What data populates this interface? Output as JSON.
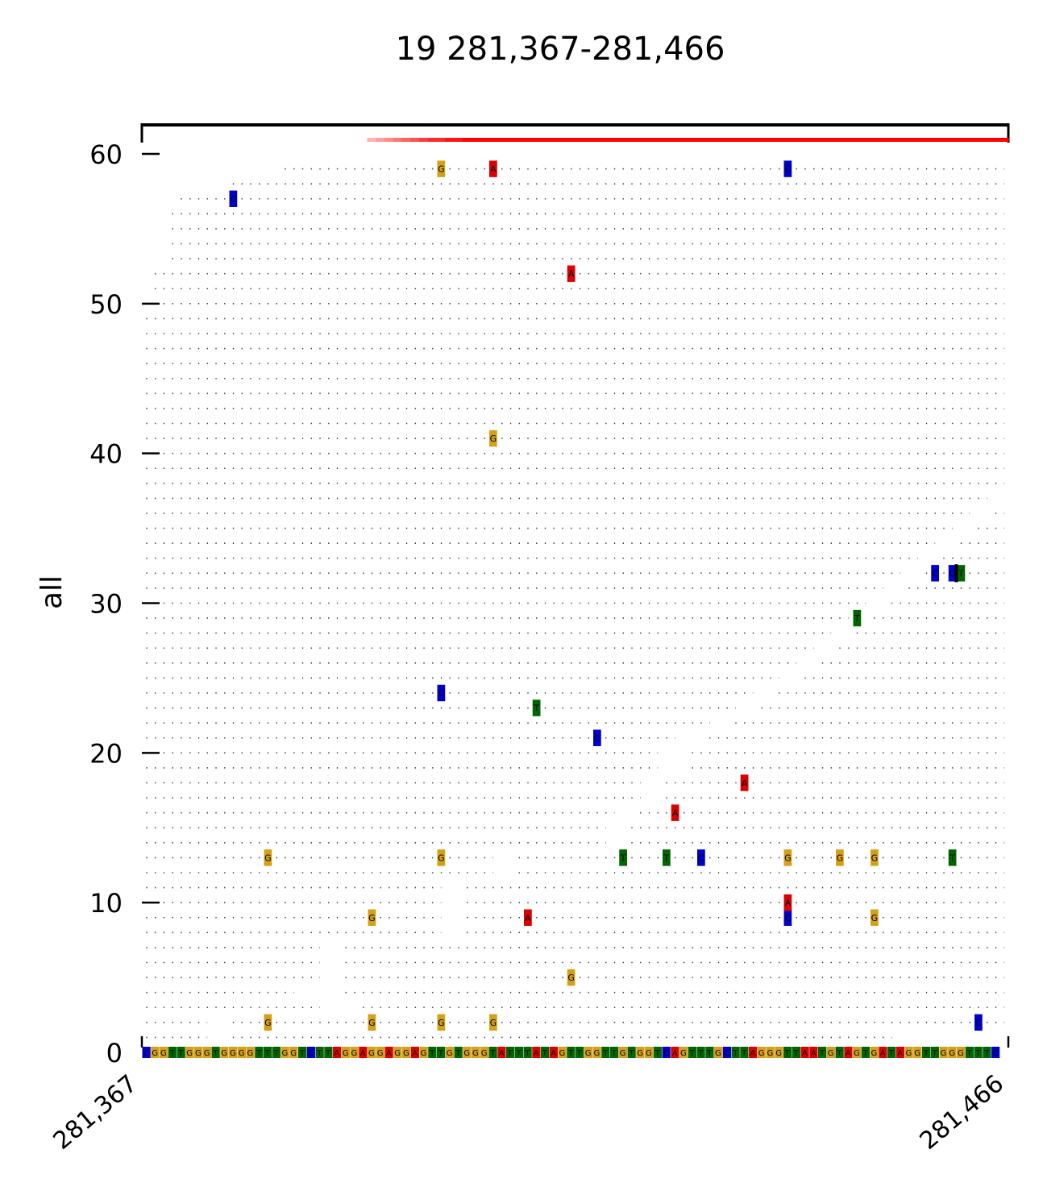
{
  "chart_data": {
    "type": "pileup",
    "title": "19 281,367-281,466",
    "chrom": "19",
    "region": {
      "start": 281367,
      "end": 281466
    },
    "ylabel": "all",
    "ylim": [
      0,
      62
    ],
    "yticks": [
      0,
      10,
      20,
      30,
      40,
      50,
      60
    ],
    "x_tick_labels": [
      "281,367",
      "281,466"
    ],
    "base_colors": {
      "A": "#dd0000",
      "C": "#0000cc",
      "G": "#d4a017",
      "T": "#006600"
    },
    "reference_sequence": "CGGTTGGGTGGGGTTTGGTCTTAGGAGGAGGAGTTGTGGGTATTTATAGTTGGTTGTGGTCAGTTTGCTTAGGGTTAATGTAGTGATAGGTTGGGTTTC",
    "coverage_by_position": [
      3,
      7,
      10,
      12,
      14,
      16,
      18,
      20,
      22,
      24,
      26,
      28,
      30,
      32,
      34,
      36,
      38,
      40,
      42,
      44,
      45,
      46,
      47,
      48,
      49,
      50,
      51,
      52,
      53,
      54,
      55,
      56,
      57,
      58,
      58,
      59,
      59,
      60,
      60,
      60,
      60,
      60,
      60,
      60,
      60,
      60,
      60,
      60,
      60,
      60,
      60,
      60,
      60,
      60,
      60,
      60,
      60,
      60,
      60,
      60,
      60,
      60,
      60,
      60,
      60,
      60,
      60,
      60,
      60,
      60,
      60,
      60,
      60,
      60,
      60,
      60,
      60,
      60,
      60,
      60,
      60,
      60,
      60,
      60,
      60,
      60,
      60,
      60,
      60,
      60,
      60,
      60,
      60,
      60,
      60,
      60,
      60,
      60,
      60,
      60
    ],
    "reads": [
      {
        "row": 1,
        "start": 281367,
        "end": 281374
      },
      {
        "row": 1,
        "start": 281377,
        "end": 281453
      },
      {
        "row": 2,
        "start": 281367,
        "end": 281374
      },
      {
        "row": 2,
        "start": 281377,
        "end": 281466
      },
      {
        "row": 3,
        "start": 281367,
        "end": 281387
      },
      {
        "row": 3,
        "start": 281392,
        "end": 281466
      },
      {
        "row": 4,
        "start": 281367,
        "end": 281384
      },
      {
        "row": 4,
        "start": 281390,
        "end": 281466
      },
      {
        "row": 5,
        "start": 281367,
        "end": 281387
      },
      {
        "row": 5,
        "start": 281390,
        "end": 281466
      },
      {
        "row": 6,
        "start": 281367,
        "end": 281387
      },
      {
        "row": 6,
        "start": 281390,
        "end": 281466
      },
      {
        "row": 7,
        "start": 281367,
        "end": 281387
      },
      {
        "row": 7,
        "start": 281390,
        "end": 281466
      },
      {
        "row": 8,
        "start": 281367,
        "end": 281401
      },
      {
        "row": 8,
        "start": 281404,
        "end": 281466
      },
      {
        "row": 9,
        "start": 281367,
        "end": 281401
      },
      {
        "row": 9,
        "start": 281404,
        "end": 281466
      },
      {
        "row": 10,
        "start": 281367,
        "end": 281401
      },
      {
        "row": 10,
        "start": 281404,
        "end": 281466
      },
      {
        "row": 11,
        "start": 281367,
        "end": 281401
      },
      {
        "row": 11,
        "start": 281404,
        "end": 281466
      },
      {
        "row": 12,
        "start": 281367,
        "end": 281407
      },
      {
        "row": 12,
        "start": 281410,
        "end": 281466
      },
      {
        "row": 13,
        "start": 281367,
        "end": 281407
      },
      {
        "row": 13,
        "start": 281410,
        "end": 281466
      },
      {
        "row": 14,
        "start": 281367,
        "end": 281420
      },
      {
        "row": 14,
        "start": 281423,
        "end": 281466
      },
      {
        "row": 15,
        "start": 281367,
        "end": 281420
      },
      {
        "row": 15,
        "start": 281423,
        "end": 281466
      },
      {
        "row": 16,
        "start": 281367,
        "end": 281421
      },
      {
        "row": 16,
        "start": 281424,
        "end": 281466
      },
      {
        "row": 17,
        "start": 281367,
        "end": 281424
      },
      {
        "row": 17,
        "start": 281427,
        "end": 281466
      },
      {
        "row": 18,
        "start": 281367,
        "end": 281424
      },
      {
        "row": 18,
        "start": 281427,
        "end": 281466
      },
      {
        "row": 19,
        "start": 281367,
        "end": 281426
      },
      {
        "row": 19,
        "start": 281430,
        "end": 281466
      },
      {
        "row": 20,
        "start": 281367,
        "end": 281426
      },
      {
        "row": 20,
        "start": 281430,
        "end": 281466
      },
      {
        "row": 21,
        "start": 281367,
        "end": 281428
      },
      {
        "row": 21,
        "start": 281432,
        "end": 281466
      },
      {
        "row": 22,
        "start": 281367,
        "end": 281432
      },
      {
        "row": 22,
        "start": 281435,
        "end": 281466
      },
      {
        "row": 23,
        "start": 281367,
        "end": 281435
      },
      {
        "row": 23,
        "start": 281438,
        "end": 281466
      },
      {
        "row": 24,
        "start": 281367,
        "end": 281437
      },
      {
        "row": 24,
        "start": 281440,
        "end": 281466
      },
      {
        "row": 25,
        "start": 281367,
        "end": 281440
      },
      {
        "row": 25,
        "start": 281443,
        "end": 281466
      },
      {
        "row": 26,
        "start": 281367,
        "end": 281442
      },
      {
        "row": 26,
        "start": 281445,
        "end": 281466
      },
      {
        "row": 27,
        "start": 281367,
        "end": 281444
      },
      {
        "row": 27,
        "start": 281447,
        "end": 281466
      },
      {
        "row": 28,
        "start": 281367,
        "end": 281446
      },
      {
        "row": 28,
        "start": 281449,
        "end": 281466
      },
      {
        "row": 29,
        "start": 281367,
        "end": 281448
      },
      {
        "row": 29,
        "start": 281451,
        "end": 281466
      },
      {
        "row": 30,
        "start": 281367,
        "end": 281450
      },
      {
        "row": 30,
        "start": 281453,
        "end": 281466
      },
      {
        "row": 31,
        "start": 281367,
        "end": 281452
      },
      {
        "row": 31,
        "start": 281455,
        "end": 281466
      },
      {
        "row": 32,
        "start": 281367,
        "end": 281454
      },
      {
        "row": 32,
        "start": 281457,
        "end": 281466
      },
      {
        "row": 33,
        "start": 281367,
        "end": 281456
      },
      {
        "row": 33,
        "start": 281459,
        "end": 281466
      },
      {
        "row": 34,
        "start": 281367,
        "end": 281458
      },
      {
        "row": 34,
        "start": 281461,
        "end": 281466
      },
      {
        "row": 35,
        "start": 281367,
        "end": 281460
      },
      {
        "row": 35,
        "start": 281463,
        "end": 281466
      },
      {
        "row": 36,
        "start": 281367,
        "end": 281462
      },
      {
        "row": 36,
        "start": 281465,
        "end": 281466
      },
      {
        "row": 37,
        "start": 281367,
        "end": 281464
      },
      {
        "row": 38,
        "start": 281367,
        "end": 281466
      },
      {
        "row": 39,
        "start": 281367,
        "end": 281466
      },
      {
        "row": 40,
        "start": 281367,
        "end": 281466
      },
      {
        "row": 41,
        "start": 281367,
        "end": 281466
      },
      {
        "row": 42,
        "start": 281367,
        "end": 281466
      },
      {
        "row": 43,
        "start": 281367,
        "end": 281466
      },
      {
        "row": 44,
        "start": 281367,
        "end": 281466
      },
      {
        "row": 45,
        "start": 281367,
        "end": 281466
      },
      {
        "row": 46,
        "start": 281367,
        "end": 281466
      },
      {
        "row": 47,
        "start": 281367,
        "end": 281466
      },
      {
        "row": 48,
        "start": 281367,
        "end": 281466
      },
      {
        "row": 49,
        "start": 281367,
        "end": 281466
      },
      {
        "row": 50,
        "start": 281367,
        "end": 281466
      },
      {
        "row": 51,
        "start": 281368,
        "end": 281466
      },
      {
        "row": 52,
        "start": 281368,
        "end": 281466
      },
      {
        "row": 53,
        "start": 281370,
        "end": 281466
      },
      {
        "row": 54,
        "start": 281370,
        "end": 281466
      },
      {
        "row": 55,
        "start": 281370,
        "end": 281466
      },
      {
        "row": 56,
        "start": 281370,
        "end": 281466
      },
      {
        "row": 57,
        "start": 281371,
        "end": 281466
      },
      {
        "row": 58,
        "start": 281377,
        "end": 281466
      },
      {
        "row": 59,
        "start": 281383,
        "end": 281466
      }
    ],
    "mismatches": [
      {
        "pos": 281381,
        "row": 2,
        "base": "G"
      },
      {
        "pos": 281393,
        "row": 2,
        "base": "G"
      },
      {
        "pos": 281401,
        "row": 2,
        "base": "G"
      },
      {
        "pos": 281407,
        "row": 2,
        "base": "G"
      },
      {
        "pos": 281463,
        "row": 2,
        "base": "C"
      },
      {
        "pos": 281416,
        "row": 5,
        "base": "G"
      },
      {
        "pos": 281393,
        "row": 9,
        "base": "G"
      },
      {
        "pos": 281411,
        "row": 9,
        "base": "A"
      },
      {
        "pos": 281441,
        "row": 9,
        "base": "C"
      },
      {
        "pos": 281451,
        "row": 9,
        "base": "G"
      },
      {
        "pos": 281441,
        "row": 10,
        "base": "A"
      },
      {
        "pos": 281381,
        "row": 13,
        "base": "G"
      },
      {
        "pos": 281401,
        "row": 13,
        "base": "G"
      },
      {
        "pos": 281422,
        "row": 13,
        "base": "T"
      },
      {
        "pos": 281427,
        "row": 13,
        "base": "T"
      },
      {
        "pos": 281431,
        "row": 13,
        "base": "C"
      },
      {
        "pos": 281441,
        "row": 13,
        "base": "G"
      },
      {
        "pos": 281447,
        "row": 13,
        "base": "G"
      },
      {
        "pos": 281451,
        "row": 13,
        "base": "G"
      },
      {
        "pos": 281460,
        "row": 13,
        "base": "T"
      },
      {
        "pos": 281428,
        "row": 16,
        "base": "A"
      },
      {
        "pos": 281436,
        "row": 18,
        "base": "A"
      },
      {
        "pos": 281419,
        "row": 21,
        "base": "C"
      },
      {
        "pos": 281412,
        "row": 23,
        "base": "T"
      },
      {
        "pos": 281401,
        "row": 24,
        "base": "C"
      },
      {
        "pos": 281449,
        "row": 29,
        "base": "T"
      },
      {
        "pos": 281458,
        "row": 32,
        "base": "C"
      },
      {
        "pos": 281460,
        "row": 32,
        "base": "C"
      },
      {
        "pos": 281461,
        "row": 32,
        "base": "T"
      },
      {
        "pos": 281407,
        "row": 41,
        "base": "G"
      },
      {
        "pos": 281416,
        "row": 52,
        "base": "A"
      },
      {
        "pos": 281377,
        "row": 57,
        "base": "C"
      },
      {
        "pos": 281401,
        "row": 59,
        "base": "G"
      },
      {
        "pos": 281407,
        "row": 59,
        "base": "A"
      },
      {
        "pos": 281441,
        "row": 59,
        "base": "C"
      }
    ],
    "insertions": [
      {
        "pos": 281460,
        "row": 32
      }
    ]
  }
}
